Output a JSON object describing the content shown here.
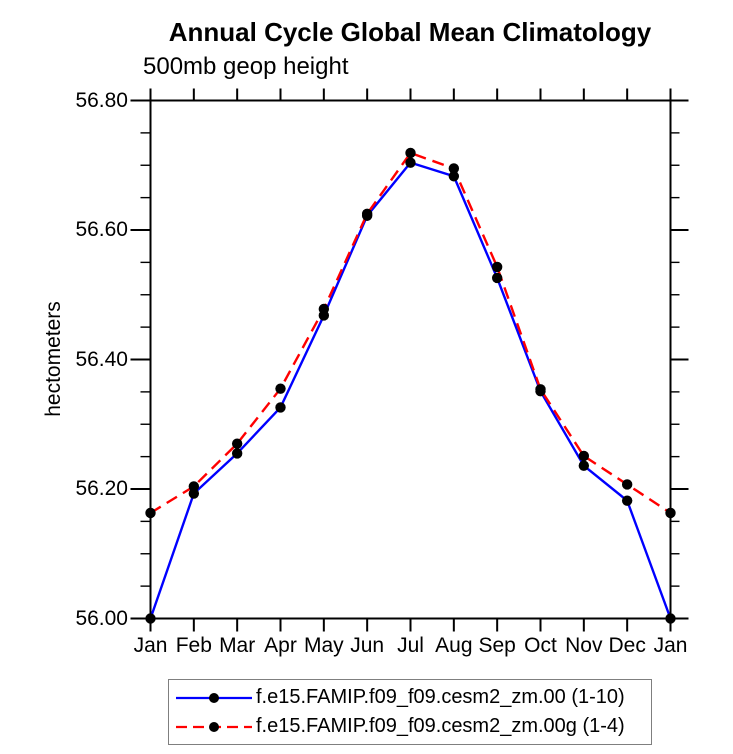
{
  "chart_data": {
    "type": "line",
    "title": "Annual Cycle Global Mean Climatology",
    "subtitle": "500mb geop height",
    "ylabel": "hectometers",
    "xlabel": "",
    "categories": [
      "Jan",
      "Feb",
      "Mar",
      "Apr",
      "May",
      "Jun",
      "Jul",
      "Aug",
      "Sep",
      "Oct",
      "Nov",
      "Dec",
      "Jan"
    ],
    "ylim": [
      56.0,
      56.8
    ],
    "yticks": [
      56.0,
      56.2,
      56.4,
      56.6,
      56.8
    ],
    "ytick_labels": [
      "56.00",
      "56.20",
      "56.40",
      "56.60",
      "56.80"
    ],
    "y_major_interval": 0.2,
    "y_minor_interval": 0.05,
    "grid": false,
    "legend_position": "bottom",
    "marker": "filled-circle",
    "marker_color": "#000000",
    "axis_color": "#000000",
    "series": [
      {
        "name": "f.e15.FAMIP.f09_f09.cesm2_zm.00 (1-10)",
        "color": "#0000ff",
        "line_style": "solid",
        "values": [
          56.0,
          56.193,
          56.255,
          56.326,
          56.468,
          56.622,
          56.704,
          56.683,
          56.526,
          56.351,
          56.236,
          56.182,
          56.0
        ]
      },
      {
        "name": "f.e15.FAMIP.f09_f09.cesm2_zm.00g (1-4)",
        "color": "#ff0000",
        "line_style": "dashed",
        "values": [
          56.163,
          56.204,
          56.27,
          56.355,
          56.478,
          56.625,
          56.719,
          56.695,
          56.543,
          56.354,
          56.251,
          56.207,
          56.163
        ]
      }
    ]
  }
}
